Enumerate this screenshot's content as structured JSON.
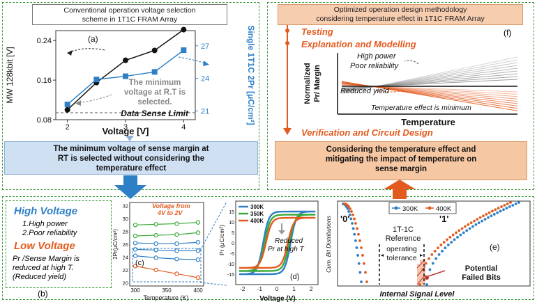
{
  "top_left": {
    "title_line1": "Conventional operation voltage selection",
    "title_line2": "scheme in 1T1C FRAM Array",
    "panel_label": "(a)",
    "y_left_label": "MW 128kbit [V]",
    "y_right_label": "Single 1T1C 2Pr [μC/cm²]",
    "x_label": "Voltage [V]",
    "annotation_line1": "The minimum",
    "annotation_line2": "voltage at R.T is",
    "annotation_line3": "selected.",
    "limit_label": "Data Sense Limit",
    "result_line1": "The minimum voltage of sense margin at",
    "result_line2": "RT is selected without considering the",
    "result_line3": "temperature effect"
  },
  "chart_data": {
    "type": "line",
    "x": [
      2,
      3,
      4
    ],
    "xticks": [
      "2",
      "3",
      "4"
    ],
    "yticks_left": [
      "0.08",
      "0.16",
      "0.24"
    ],
    "yticks_right": [
      "21",
      "24",
      "27"
    ],
    "ylim_left": [
      0.08,
      0.26
    ],
    "ylim_right": [
      20.2,
      28.4
    ],
    "series": [
      {
        "axis": "left",
        "color": "#111111",
        "x": [
          2,
          2.5,
          3,
          3.5,
          4
        ],
        "values": [
          0.1,
          0.155,
          0.2,
          0.22,
          0.262
        ]
      },
      {
        "axis": "right",
        "color": "#2d7fc6",
        "x": [
          2,
          2.5,
          3,
          3.5,
          4
        ],
        "values": [
          21.6,
          23.9,
          24.2,
          24.6,
          26.6
        ]
      }
    ],
    "limit_value": 0.094
  },
  "top_right": {
    "title_line1": "Optimized operation design methodology",
    "title_line2": "considering temperature effect in 1T1C FRAM Array",
    "panel_label": "(f)",
    "step1": "Testing",
    "step2": "Explanation and Modelling",
    "step3": "Verification and Circuit Design",
    "inset_y_label_line1": "Normalized",
    "inset_y_label_line2": "Pr/ Margin",
    "inset_x_label": "Temperature",
    "high_line1": "High power",
    "high_line2": "Poor reliability",
    "reduced_yield": "Reduced yield",
    "minimum_label": "Temperature effect is minimum",
    "result_line1": "Considering the temperature effect and",
    "result_line2": "mitigating the impact of temperature on",
    "result_line3": "sense margin"
  },
  "bottom_b": {
    "high_voltage": "High Voltage",
    "hv_item1": "1.High power",
    "hv_item2": "2.Poor reliability",
    "low_voltage": "Low Voltage",
    "lv_line1": "Pr /Sense Margin is",
    "lv_line2": "reduced at high T.",
    "lv_line3": "(Reduced yield)",
    "panel_label": "(b)"
  },
  "bottom_c": {
    "y_label": "2Pr(μC/cm²)",
    "x_label": "Temperature (K)",
    "voltage_label_line1": "Voltage from",
    "voltage_label_line2": "4V to 2V",
    "panel_label": "(c)",
    "yticks": [
      "20",
      "22",
      "24",
      "26",
      "28",
      "30",
      "32"
    ],
    "xticks": [
      "300",
      "350",
      "400"
    ]
  },
  "bottom_d": {
    "legend": [
      "300K",
      "350K",
      "400K"
    ],
    "legend_colors": [
      "#2d7fc6",
      "#3aaa3a",
      "#e35a1e"
    ],
    "reduced_line1": "Reduced",
    "reduced_line2": "Pr at high T",
    "y_label": "Pr (μC/cm²)",
    "x_label": "Voltage (V)",
    "panel_label": "(d)",
    "xticks": [
      "-2",
      "-1",
      "0",
      "1",
      "2"
    ],
    "yticks": [
      "-15",
      "-10",
      "-5",
      "0",
      "5",
      "10",
      "15"
    ]
  },
  "bottom_e": {
    "legend": [
      "300K",
      "400K"
    ],
    "zero_label": "'0'",
    "one_label": "'1'",
    "ref_line1": "1T-1C",
    "ref_line2": "Reference",
    "tolerance_line1": "operating",
    "tolerance_line2": "tolerance",
    "panel_label": "(e)",
    "failed_line1": "Potential",
    "failed_line2": "Failed Bits",
    "y_label": "Cum. Bit Distributions",
    "x_label": "Internal Signal Level"
  }
}
